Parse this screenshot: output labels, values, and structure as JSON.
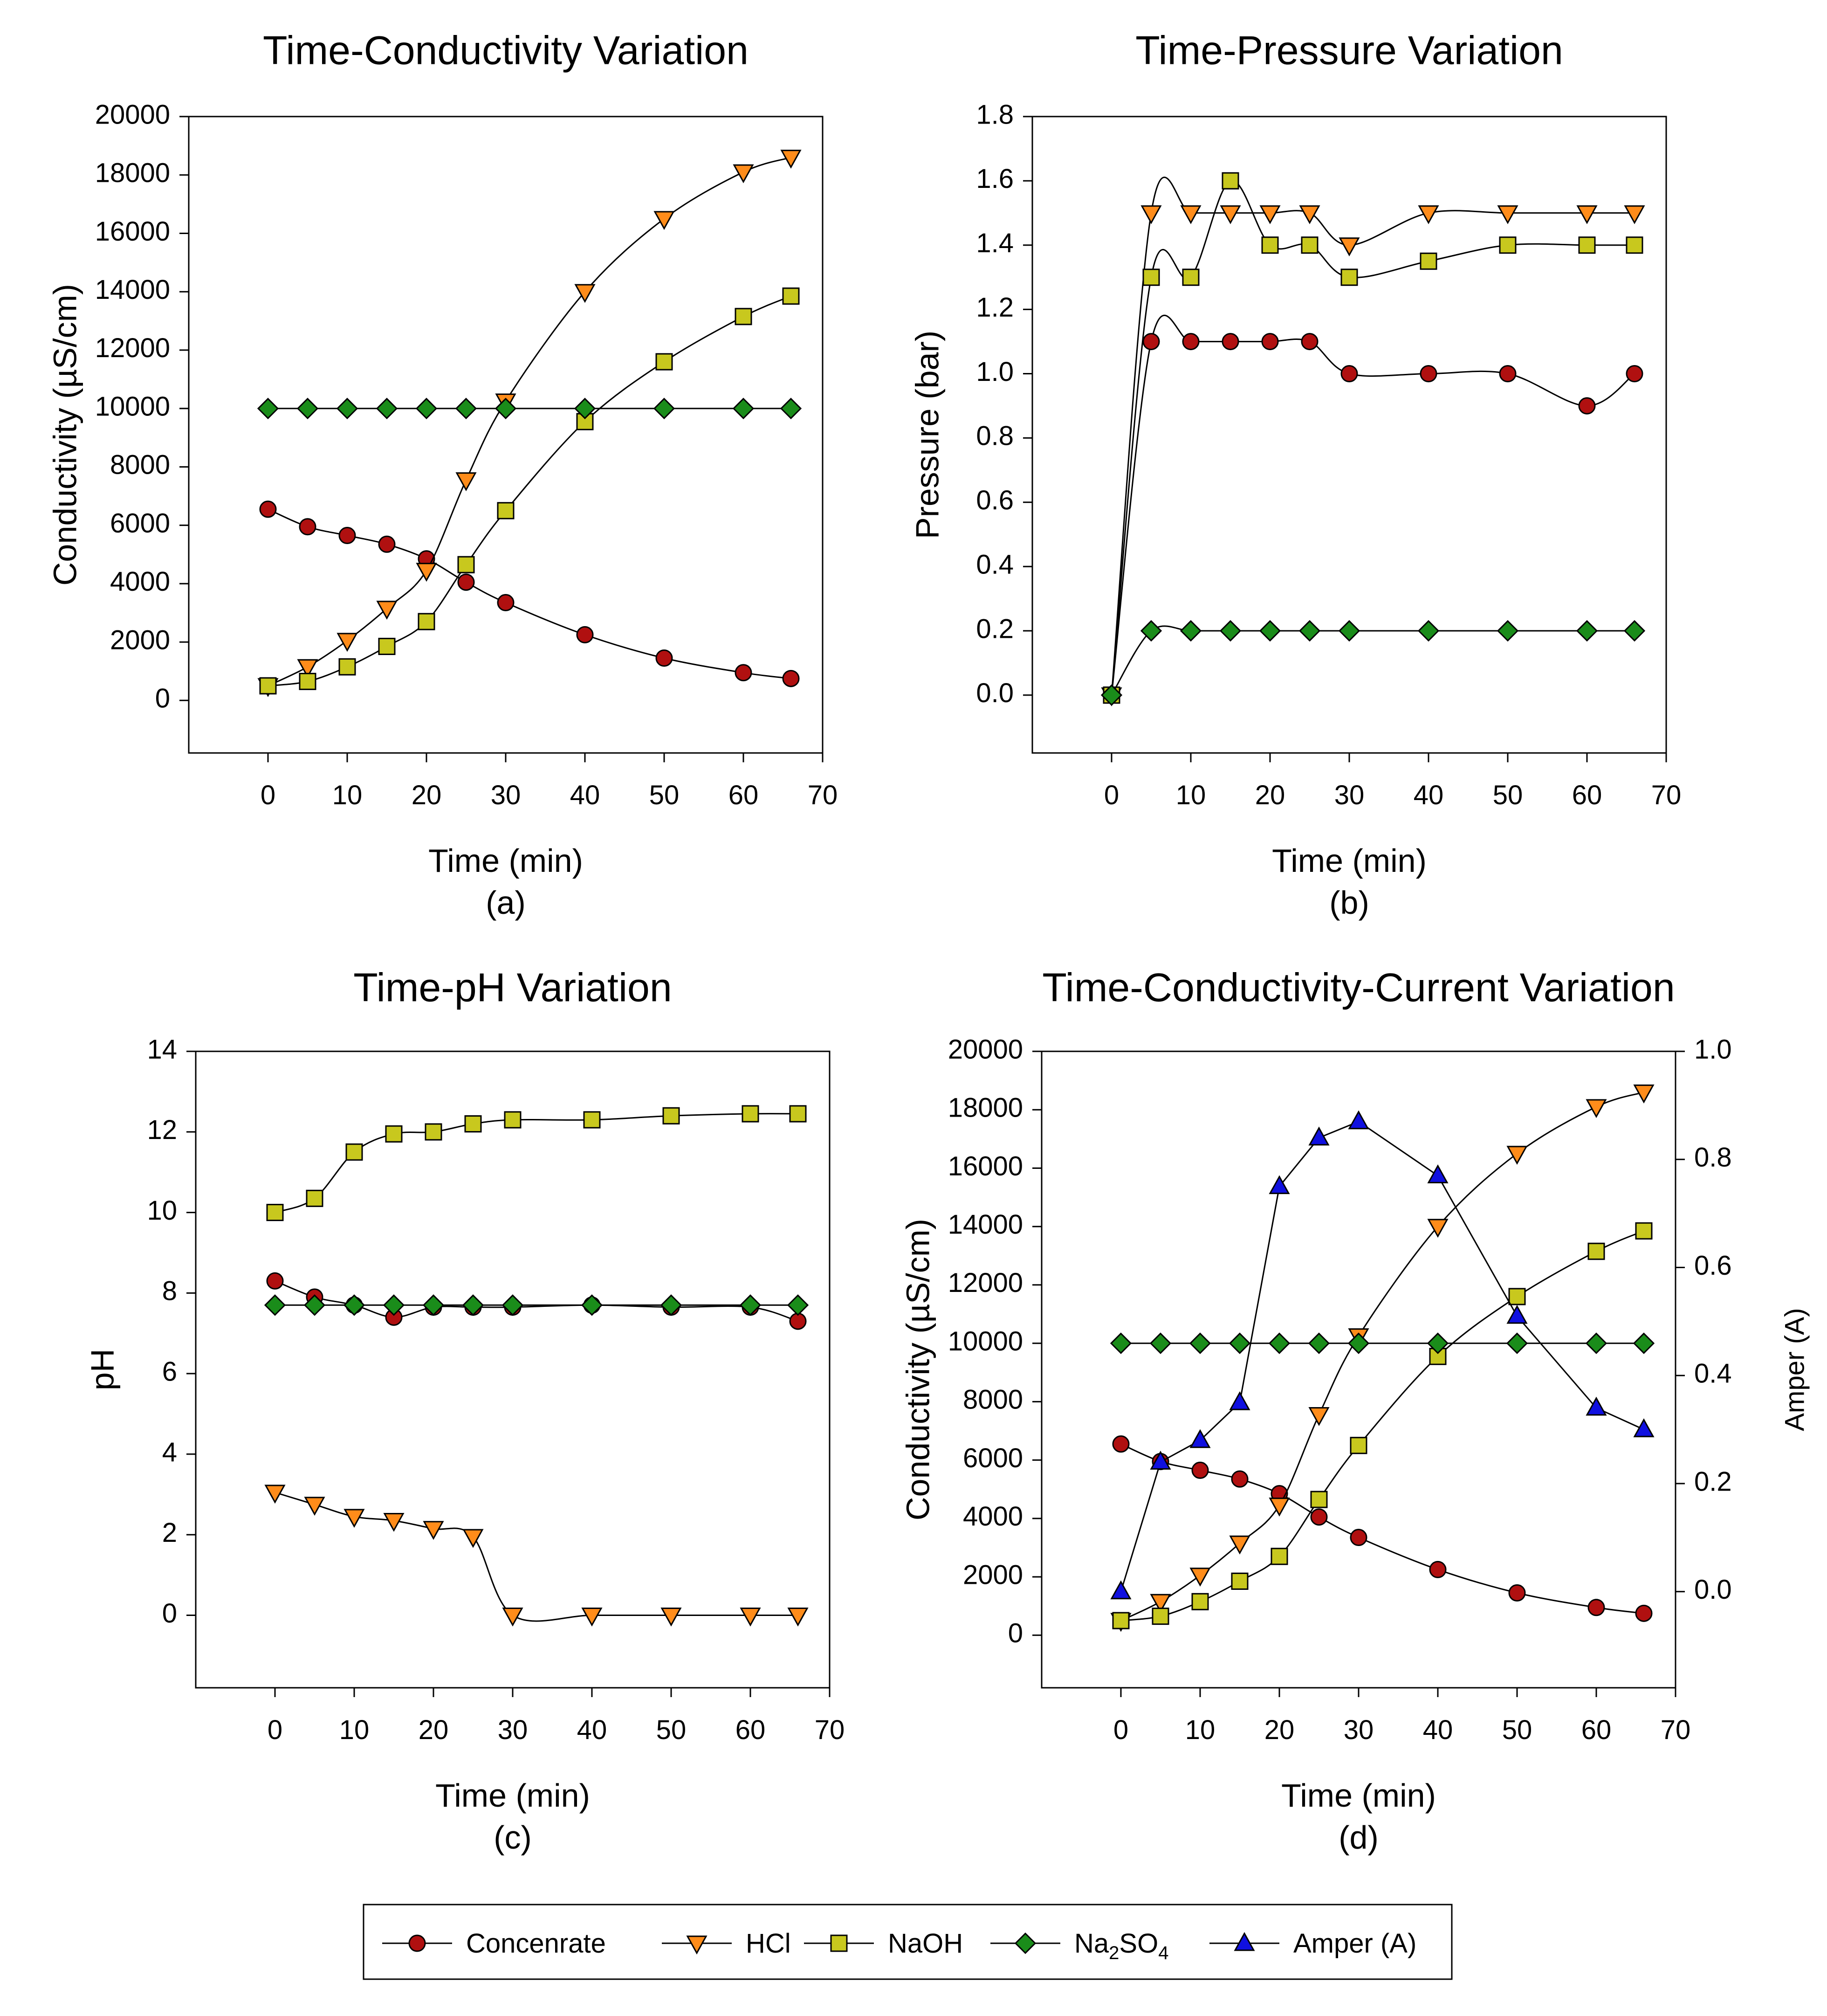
{
  "chart_data": [
    {
      "type": "line",
      "title": "Time-Conductivity Variation",
      "xlabel": "Time (min)",
      "ylabel": "Conductivity (µS/cm)",
      "caption": "(a)",
      "xlim": [
        -10,
        70
      ],
      "ylim": [
        -1800,
        20000
      ],
      "xticks": [
        0,
        10,
        20,
        30,
        40,
        50,
        60,
        70
      ],
      "yticks": [
        0,
        2000,
        4000,
        6000,
        8000,
        10000,
        12000,
        14000,
        16000,
        18000,
        20000
      ],
      "x": [
        0,
        5,
        10,
        15,
        20,
        25,
        30,
        40,
        50,
        60,
        66
      ],
      "series": [
        {
          "key": "conc",
          "name": "Concenrate",
          "values": [
            6550,
            5950,
            5650,
            5350,
            4850,
            4050,
            3350,
            2250,
            1450,
            950,
            750
          ]
        },
        {
          "key": "hcl",
          "name": "HCl",
          "values": [
            500,
            1150,
            2050,
            3150,
            4450,
            7550,
            10250,
            14000,
            16500,
            18100,
            18600
          ]
        },
        {
          "key": "naoh",
          "name": "NaOH",
          "values": [
            500,
            650,
            1150,
            1850,
            2700,
            4650,
            6500,
            9550,
            11600,
            13150,
            13850
          ]
        },
        {
          "key": "na2so4",
          "name": "Na2SO4",
          "values": [
            10000,
            10000,
            10000,
            10000,
            10000,
            10000,
            10000,
            10000,
            10000,
            10000,
            10000
          ]
        }
      ]
    },
    {
      "type": "line",
      "title": "Time-Pressure Variation",
      "xlabel": "Time (min)",
      "ylabel": "Pressure (bar)",
      "caption": "(b)",
      "xlim": [
        -10,
        70
      ],
      "ylim": [
        -0.18,
        1.8
      ],
      "xticks": [
        0,
        10,
        20,
        30,
        40,
        50,
        60,
        70
      ],
      "yticks": [
        "0.0",
        "0.2",
        "0.4",
        "0.6",
        "0.8",
        "1.0",
        "1.2",
        "1.4",
        "1.6",
        "1.8"
      ],
      "x": [
        0,
        5,
        10,
        15,
        20,
        25,
        30,
        40,
        50,
        60,
        66
      ],
      "series": [
        {
          "key": "conc",
          "name": "Concenrate",
          "values": [
            0,
            1.1,
            1.1,
            1.1,
            1.1,
            1.1,
            1.0,
            1.0,
            1.0,
            0.9,
            1.0
          ]
        },
        {
          "key": "hcl",
          "name": "HCl",
          "values": [
            0,
            1.5,
            1.5,
            1.5,
            1.5,
            1.5,
            1.4,
            1.5,
            1.5,
            1.5,
            1.5
          ]
        },
        {
          "key": "naoh",
          "name": "NaOH",
          "values": [
            0,
            1.3,
            1.3,
            1.6,
            1.4,
            1.4,
            1.3,
            1.35,
            1.4,
            1.4,
            1.4
          ]
        },
        {
          "key": "na2so4",
          "name": "Na2SO4",
          "values": [
            0,
            0.2,
            0.2,
            0.2,
            0.2,
            0.2,
            0.2,
            0.2,
            0.2,
            0.2,
            0.2
          ]
        }
      ]
    },
    {
      "type": "line",
      "title": "Time-pH Variation",
      "xlabel": "Time (min)",
      "ylabel": "pH",
      "caption": "(c)",
      "xlim": [
        -10,
        70
      ],
      "ylim": [
        -1.8,
        14
      ],
      "xticks": [
        0,
        10,
        20,
        30,
        40,
        50,
        60,
        70
      ],
      "yticks": [
        0,
        2,
        4,
        6,
        8,
        10,
        12,
        14
      ],
      "x": [
        0,
        5,
        10,
        15,
        20,
        25,
        30,
        40,
        50,
        60,
        66
      ],
      "series": [
        {
          "key": "conc",
          "name": "Concenrate",
          "values": [
            8.3,
            7.9,
            7.7,
            7.4,
            7.65,
            7.65,
            7.65,
            7.7,
            7.65,
            7.65,
            7.3
          ]
        },
        {
          "key": "hcl",
          "name": "HCl",
          "values": [
            3.05,
            2.75,
            2.45,
            2.35,
            2.15,
            1.95,
            0,
            0,
            0,
            0,
            0
          ]
        },
        {
          "key": "naoh",
          "name": "NaOH",
          "values": [
            10.0,
            10.35,
            11.5,
            11.95,
            12.0,
            12.2,
            12.3,
            12.3,
            12.4,
            12.45,
            12.45
          ]
        },
        {
          "key": "na2so4",
          "name": "Na2SO4",
          "values": [
            7.7,
            7.7,
            7.7,
            7.7,
            7.7,
            7.7,
            7.7,
            7.7,
            7.7,
            7.7,
            7.7
          ]
        }
      ]
    },
    {
      "type": "line",
      "title": "Time-Conductivity-Current Variation",
      "xlabel": "Time (min)",
      "ylabel": "Conductivity (µS/cm)",
      "ylabel2": "Amper (A)",
      "caption": "(d)",
      "xlim": [
        -10,
        70
      ],
      "ylim": [
        -1800,
        20000
      ],
      "ylim2": [
        -0.178,
        1.0
      ],
      "xticks": [
        0,
        10,
        20,
        30,
        40,
        50,
        60,
        70
      ],
      "yticks": [
        0,
        2000,
        4000,
        6000,
        8000,
        10000,
        12000,
        14000,
        16000,
        18000,
        20000
      ],
      "yticks2": [
        "0.0",
        "0.2",
        "0.4",
        "0.6",
        "0.8",
        "1.0"
      ],
      "x": [
        0,
        5,
        10,
        15,
        20,
        25,
        30,
        40,
        50,
        60,
        66
      ],
      "series": [
        {
          "key": "conc",
          "name": "Concenrate",
          "values": [
            6550,
            5950,
            5650,
            5350,
            4850,
            4050,
            3350,
            2250,
            1450,
            950,
            750
          ]
        },
        {
          "key": "hcl",
          "name": "HCl",
          "values": [
            500,
            1150,
            2050,
            3150,
            4450,
            7550,
            10250,
            14000,
            16500,
            18100,
            18600
          ]
        },
        {
          "key": "naoh",
          "name": "NaOH",
          "values": [
            500,
            650,
            1150,
            1850,
            2700,
            4650,
            6500,
            9550,
            11600,
            13150,
            13850
          ]
        },
        {
          "key": "na2so4",
          "name": "Na2SO4",
          "values": [
            10000,
            10000,
            10000,
            10000,
            10000,
            10000,
            10000,
            10000,
            10000,
            10000,
            10000
          ]
        },
        {
          "key": "amper",
          "name": "Amper (A)",
          "axis": "right",
          "values": [
            0.0,
            0.24,
            0.28,
            0.35,
            0.75,
            0.84,
            0.87,
            0.77,
            0.51,
            0.34,
            0.3
          ]
        }
      ]
    }
  ],
  "legend": {
    "items": [
      {
        "key": "conc",
        "label": "Concenrate"
      },
      {
        "key": "hcl",
        "label": "HCl"
      },
      {
        "key": "naoh",
        "label": "NaOH"
      },
      {
        "key": "na2so4",
        "label": "Na",
        "sub1": "2",
        "mid": "SO",
        "sub2": "4"
      },
      {
        "key": "amper",
        "label": "Amper (A)"
      }
    ]
  },
  "styles": {
    "conc": {
      "color": "#b01010",
      "marker": "circle"
    },
    "hcl": {
      "color": "#ff8c1a",
      "marker": "triangle-down"
    },
    "naoh": {
      "color": "#c8c81e",
      "marker": "square"
    },
    "na2so4": {
      "color": "#1a8c1a",
      "marker": "diamond"
    },
    "amper": {
      "color": "#1010e0",
      "marker": "triangle-up"
    }
  }
}
